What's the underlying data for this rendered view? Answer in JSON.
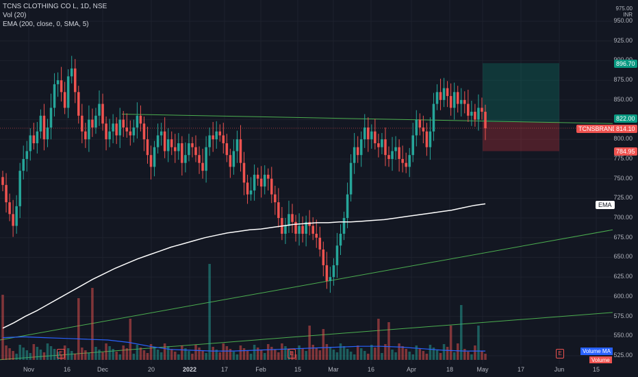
{
  "legend": {
    "symbol": "TCNS CLOTHING CO L, 1D, NSE",
    "vol": "Vol (20)",
    "ema": "EMA (200, close, 0, SMA, 5)"
  },
  "price_axis": {
    "currency_top": "975.00",
    "currency_unit": "INR",
    "ticks": [
      "950.00",
      "925.00",
      "900.00",
      "875.00",
      "850.00",
      "825.00",
      "800.00",
      "775.00",
      "750.00",
      "725.00",
      "700.00",
      "675.00",
      "650.00",
      "625.00",
      "600.00",
      "575.00",
      "550.00",
      "525.00"
    ],
    "tags": {
      "target": "896.70",
      "stop_zone_top": "822.00",
      "symbol_label": "TCNSBRANDS",
      "last_price": "814.10",
      "stop": "784.95"
    }
  },
  "time_axis": {
    "labels": [
      "Nov",
      "16",
      "Dec",
      "20",
      "2022",
      "17",
      "Feb",
      "15",
      "Mar",
      "16",
      "Apr",
      "18",
      "May",
      "17",
      "Jun",
      "15"
    ]
  },
  "ema_label": "EMA",
  "earnings_glyph": "E",
  "volume_tags": {
    "ma": "Volume MA",
    "vol": "Volume"
  },
  "colors": {
    "up": "#26a69a",
    "down": "#ef5350",
    "bg": "#131722",
    "grid": "#1e222d",
    "ema": "#ffffff",
    "trend": "#4caf50",
    "vol_ma": "#2962ff"
  },
  "chart_data": {
    "type": "candlestick",
    "symbol": "TCNSBRANDS",
    "interval": "1D",
    "y_range": [
      520,
      975
    ],
    "last_close": 814.1,
    "closes": [
      742,
      720,
      705,
      690,
      715,
      760,
      775,
      785,
      805,
      795,
      810,
      830,
      800,
      815,
      840,
      870,
      875,
      860,
      840,
      880,
      890,
      860,
      830,
      810,
      800,
      825,
      815,
      830,
      845,
      820,
      800,
      810,
      820,
      805,
      825,
      815,
      810,
      805,
      815,
      830,
      820,
      800,
      780,
      765,
      790,
      805,
      810,
      785,
      800,
      790,
      785,
      795,
      770,
      780,
      795,
      790,
      780,
      770,
      760,
      790,
      805,
      800,
      810,
      805,
      795,
      780,
      765,
      785,
      800,
      770,
      745,
      730,
      735,
      755,
      750,
      740,
      755,
      750,
      730,
      720,
      700,
      680,
      690,
      705,
      695,
      680,
      690,
      680,
      695,
      690,
      680,
      675,
      660,
      640,
      620,
      625,
      640,
      665,
      680,
      700,
      730,
      770,
      790,
      780,
      800,
      815,
      800,
      810,
      795,
      790,
      800,
      780,
      775,
      785,
      790,
      775,
      770,
      765,
      780,
      805,
      825,
      815,
      810,
      790,
      810,
      845,
      860,
      850,
      865,
      855,
      840,
      860,
      845,
      850,
      845,
      830,
      835,
      825,
      840,
      835,
      814
    ],
    "ema200": [
      560,
      567,
      575,
      582,
      590,
      598,
      606,
      614,
      622,
      629,
      636,
      642,
      648,
      653,
      658,
      663,
      667,
      671,
      675,
      678,
      681,
      683,
      685,
      686,
      688,
      690,
      692,
      693,
      694,
      694,
      695,
      695,
      696,
      697,
      698,
      700,
      702,
      704,
      706,
      708,
      710,
      713,
      716,
      718
    ],
    "volume_ma": [
      548,
      549,
      548,
      547,
      546,
      545,
      542,
      537,
      533,
      532,
      531,
      531,
      532,
      533,
      534,
      535,
      536,
      537,
      537,
      536,
      534,
      532,
      531,
      531
    ],
    "trendlines": [
      {
        "from": [
          "2021-10-28",
          832
        ],
        "to": [
          "2022-06-22",
          820
        ],
        "color": "green"
      },
      {
        "from": [
          "2021-10-28",
          545
        ],
        "to": [
          "2022-06-22",
          685
        ],
        "color": "green"
      },
      {
        "from": [
          "2021-10-28",
          520
        ],
        "to": [
          "2022-06-22",
          580
        ],
        "color": "green"
      }
    ],
    "position": {
      "entry": 822.0,
      "target": 896.7,
      "stop": 784.95
    },
    "earnings_markers": [
      "Nov",
      "Feb",
      "May"
    ]
  }
}
